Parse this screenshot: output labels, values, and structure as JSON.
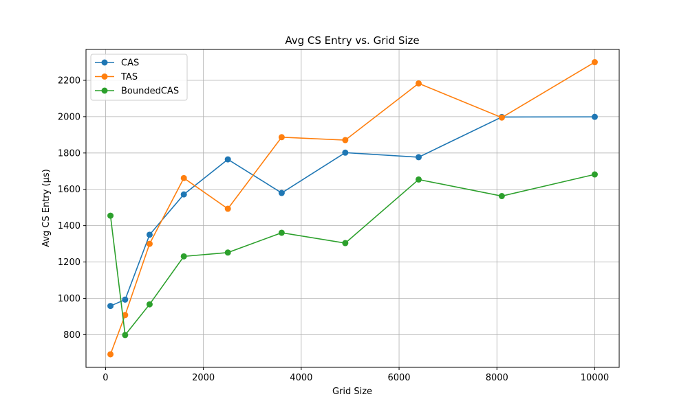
{
  "chart_data": {
    "type": "line",
    "title": "Avg CS Entry vs. Grid Size",
    "xlabel": "Grid Size",
    "ylabel": "Avg CS Entry (µs)",
    "x": [
      100,
      400,
      900,
      1600,
      2500,
      3600,
      4900,
      6400,
      8100,
      10000
    ],
    "xlim": [
      -400,
      10500
    ],
    "ylim": [
      620,
      2370
    ],
    "xticks": [
      0,
      2000,
      4000,
      6000,
      8000,
      10000
    ],
    "yticks": [
      800,
      1000,
      1200,
      1400,
      1600,
      1800,
      2000,
      2200
    ],
    "grid": true,
    "legend_position": "top-left",
    "series": [
      {
        "name": "CAS",
        "color": "#1f77b4",
        "values": [
          958,
          993,
          1350,
          1572,
          1765,
          1580,
          1802,
          1777,
          1998,
          1999
        ]
      },
      {
        "name": "TAS",
        "color": "#ff7f0e",
        "values": [
          692,
          908,
          1300,
          1662,
          1493,
          1887,
          1871,
          2183,
          1995,
          2300
        ]
      },
      {
        "name": "BoundedCAS",
        "color": "#2ca02c",
        "values": [
          1455,
          798,
          967,
          1231,
          1252,
          1361,
          1304,
          1654,
          1563,
          1682
        ]
      }
    ]
  }
}
